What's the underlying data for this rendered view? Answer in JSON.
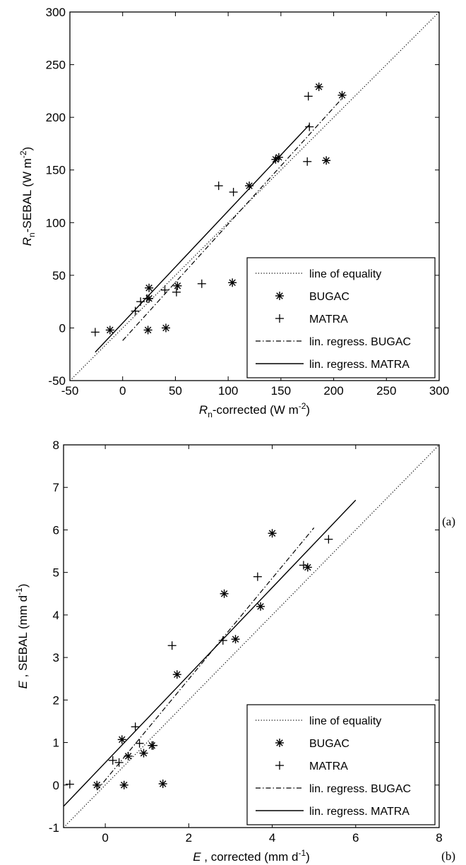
{
  "chart_data": [
    {
      "type": "scatter",
      "panel_label": "(a)",
      "xlabel": {
        "symbol": "R",
        "sub": "n",
        "text": "-corrected (W m",
        "sup": "-2",
        "close": ")"
      },
      "ylabel": {
        "symbol": "R",
        "sub": "n",
        "text": "-SEBAL (W m",
        "sup": "-2",
        "close": ")"
      },
      "xlim": [
        -50,
        300
      ],
      "ylim": [
        -50,
        300
      ],
      "xticks": [
        -50,
        0,
        50,
        100,
        150,
        200,
        250,
        300
      ],
      "yticks": [
        -50,
        0,
        50,
        100,
        150,
        200,
        250,
        300
      ],
      "grid": false,
      "legend_position": "bottom-right",
      "legend": [
        "line of equality",
        "BUGAC",
        "MATRA",
        "lin. regress. BUGAC",
        "lin. regress. MATRA"
      ],
      "series": [
        {
          "name": "BUGAC",
          "marker": "asterisk",
          "points": [
            [
              -12,
              -2
            ],
            [
              24,
              -2
            ],
            [
              25,
              38
            ],
            [
              25,
              28
            ],
            [
              41,
              0
            ],
            [
              52,
              40
            ],
            [
              104,
              43
            ],
            [
              120,
              135
            ],
            [
              145,
              160
            ],
            [
              148,
              162
            ],
            [
              186,
              229
            ],
            [
              193,
              159
            ],
            [
              208,
              221
            ]
          ]
        },
        {
          "name": "MATRA",
          "marker": "plus",
          "points": [
            [
              -26,
              -4
            ],
            [
              12,
              16
            ],
            [
              17,
              25
            ],
            [
              23,
              28
            ],
            [
              40,
              36
            ],
            [
              51,
              34
            ],
            [
              75,
              42
            ],
            [
              91,
              135
            ],
            [
              105,
              129
            ],
            [
              175,
              158
            ],
            [
              176,
              220
            ],
            [
              177,
              191
            ]
          ]
        },
        {
          "name": "line of equality",
          "style": "dotted",
          "line": [
            [
              -50,
              -50
            ],
            [
              300,
              300
            ]
          ]
        },
        {
          "name": "lin. regress. BUGAC",
          "style": "dashdot",
          "line": [
            [
              0,
              -12
            ],
            [
              208,
              218
            ]
          ]
        },
        {
          "name": "lin. regress. MATRA",
          "style": "solid",
          "line": [
            [
              -26,
              -23
            ],
            [
              177,
              193
            ]
          ]
        }
      ]
    },
    {
      "type": "scatter",
      "panel_label": "(b)",
      "xlabel": {
        "symbol": "E",
        "sub": "",
        "text": " , corrected (mm d",
        "sup": "-1",
        "close": ")"
      },
      "ylabel": {
        "symbol": "E",
        "sub": "",
        "text": " , SEBAL (mm d",
        "sup": "-1",
        "close": ")"
      },
      "xlim": [
        -1,
        8
      ],
      "ylim": [
        -1,
        8
      ],
      "xticks": [
        0,
        2,
        4,
        6,
        8
      ],
      "yticks": [
        -1,
        0,
        1,
        2,
        3,
        4,
        5,
        6,
        7,
        8
      ],
      "grid": false,
      "legend_position": "bottom-right",
      "legend": [
        "line of equality",
        "BUGAC",
        "MATRA",
        "lin. regress. BUGAC",
        "lin. regress. MATRA"
      ],
      "series": [
        {
          "name": "BUGAC",
          "marker": "asterisk",
          "points": [
            [
              -0.2,
              0.0
            ],
            [
              0.4,
              1.07
            ],
            [
              0.45,
              0.0
            ],
            [
              0.55,
              0.68
            ],
            [
              0.92,
              0.75
            ],
            [
              1.12,
              0.93
            ],
            [
              1.38,
              0.03
            ],
            [
              1.72,
              2.6
            ],
            [
              2.85,
              4.5
            ],
            [
              3.12,
              3.43
            ],
            [
              3.72,
              4.2
            ],
            [
              4.0,
              5.92
            ],
            [
              4.85,
              5.12
            ]
          ]
        },
        {
          "name": "MATRA",
          "marker": "plus",
          "points": [
            [
              -0.85,
              0.02
            ],
            [
              0.18,
              0.58
            ],
            [
              0.33,
              0.53
            ],
            [
              0.72,
              1.37
            ],
            [
              0.82,
              0.98
            ],
            [
              1.15,
              0.93
            ],
            [
              1.6,
              3.28
            ],
            [
              2.82,
              3.4
            ],
            [
              3.65,
              4.9
            ],
            [
              4.75,
              5.17
            ],
            [
              5.35,
              5.78
            ]
          ]
        },
        {
          "name": "line of equality",
          "style": "dotted",
          "line": [
            [
              -1,
              -1
            ],
            [
              8,
              8
            ]
          ]
        },
        {
          "name": "lin. regress. BUGAC",
          "style": "dashdot",
          "line": [
            [
              -0.2,
              -0.12
            ],
            [
              5.0,
              6.05
            ]
          ]
        },
        {
          "name": "lin. regress. MATRA",
          "style": "solid",
          "line": [
            [
              -1,
              -0.5
            ],
            [
              6.0,
              6.7
            ]
          ]
        }
      ]
    }
  ]
}
